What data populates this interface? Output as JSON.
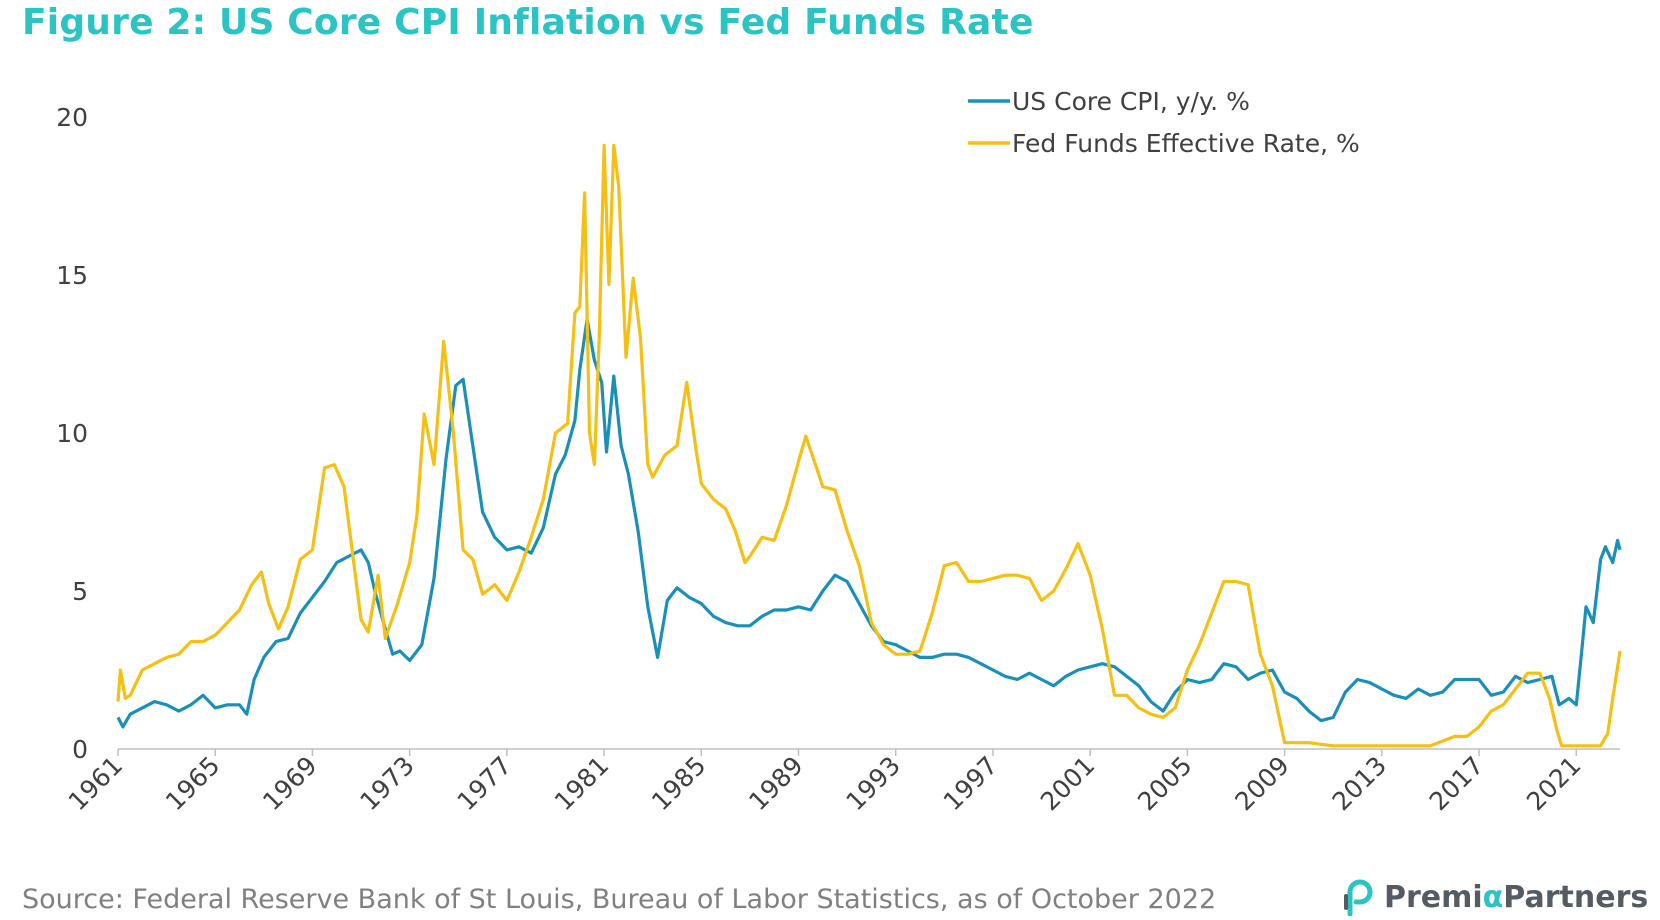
{
  "title": "Figure 2: US Core CPI Inflation vs Fed Funds Rate",
  "source": "Source: Federal Reserve Bank of St Louis, Bureau of Labor Statistics, as of October 2022",
  "logo": {
    "icon": "premia-p-logo-icon",
    "text_prefix": "Premi",
    "text_alpha": "α",
    "text_suffix": "Partners"
  },
  "colors": {
    "title": "#2cc3c3",
    "cpi": "#1a8fb8",
    "fed": "#f5bf14",
    "axis": "#bfbfbf",
    "text": "#404040"
  },
  "chart_data": {
    "type": "line",
    "title": "Figure 2: US Core CPI Inflation vs Fed Funds Rate",
    "xlabel": "",
    "ylabel": "",
    "xlim": [
      1961,
      2022.8
    ],
    "ylim": [
      0,
      20
    ],
    "y_ticks": [
      0,
      5,
      10,
      15,
      20
    ],
    "x_ticks": [
      1961,
      1965,
      1969,
      1973,
      1977,
      1981,
      1985,
      1989,
      1993,
      1997,
      2001,
      2005,
      2009,
      2013,
      2017,
      2021
    ],
    "grid": false,
    "legend_position": "top-right",
    "series": [
      {
        "name": "US Core CPI, y/y. %",
        "color": "#1a8fb8",
        "points": [
          [
            1961.0,
            1.0
          ],
          [
            1961.2,
            0.7
          ],
          [
            1961.5,
            1.1
          ],
          [
            1962.0,
            1.3
          ],
          [
            1962.5,
            1.5
          ],
          [
            1963.0,
            1.4
          ],
          [
            1963.5,
            1.2
          ],
          [
            1964.0,
            1.4
          ],
          [
            1964.5,
            1.7
          ],
          [
            1965.0,
            1.3
          ],
          [
            1965.5,
            1.4
          ],
          [
            1966.0,
            1.4
          ],
          [
            1966.3,
            1.1
          ],
          [
            1966.6,
            2.2
          ],
          [
            1967.0,
            2.9
          ],
          [
            1967.5,
            3.4
          ],
          [
            1968.0,
            3.5
          ],
          [
            1968.5,
            4.3
          ],
          [
            1969.0,
            4.8
          ],
          [
            1969.5,
            5.3
          ],
          [
            1970.0,
            5.9
          ],
          [
            1970.5,
            6.1
          ],
          [
            1971.0,
            6.3
          ],
          [
            1971.3,
            5.9
          ],
          [
            1971.6,
            4.9
          ],
          [
            1972.0,
            3.8
          ],
          [
            1972.3,
            3.0
          ],
          [
            1972.6,
            3.1
          ],
          [
            1973.0,
            2.8
          ],
          [
            1973.5,
            3.3
          ],
          [
            1974.0,
            5.4
          ],
          [
            1974.5,
            9.2
          ],
          [
            1974.9,
            11.5
          ],
          [
            1975.2,
            11.7
          ],
          [
            1975.6,
            9.6
          ],
          [
            1976.0,
            7.5
          ],
          [
            1976.5,
            6.7
          ],
          [
            1977.0,
            6.3
          ],
          [
            1977.5,
            6.4
          ],
          [
            1978.0,
            6.2
          ],
          [
            1978.5,
            7.0
          ],
          [
            1979.0,
            8.7
          ],
          [
            1979.4,
            9.3
          ],
          [
            1979.8,
            10.4
          ],
          [
            1980.0,
            12.0
          ],
          [
            1980.3,
            13.6
          ],
          [
            1980.6,
            12.3
          ],
          [
            1980.9,
            11.6
          ],
          [
            1981.1,
            9.4
          ],
          [
            1981.4,
            11.8
          ],
          [
            1981.7,
            9.6
          ],
          [
            1982.0,
            8.7
          ],
          [
            1982.4,
            6.9
          ],
          [
            1982.8,
            4.5
          ],
          [
            1983.2,
            2.9
          ],
          [
            1983.6,
            4.7
          ],
          [
            1984.0,
            5.1
          ],
          [
            1984.5,
            4.8
          ],
          [
            1985.0,
            4.6
          ],
          [
            1985.5,
            4.2
          ],
          [
            1986.0,
            4.0
          ],
          [
            1986.5,
            3.9
          ],
          [
            1987.0,
            3.9
          ],
          [
            1987.5,
            4.2
          ],
          [
            1988.0,
            4.4
          ],
          [
            1988.5,
            4.4
          ],
          [
            1989.0,
            4.5
          ],
          [
            1989.5,
            4.4
          ],
          [
            1990.0,
            5.0
          ],
          [
            1990.5,
            5.5
          ],
          [
            1991.0,
            5.3
          ],
          [
            1991.5,
            4.6
          ],
          [
            1992.0,
            3.9
          ],
          [
            1992.5,
            3.4
          ],
          [
            1993.0,
            3.3
          ],
          [
            1993.5,
            3.1
          ],
          [
            1994.0,
            2.9
          ],
          [
            1994.5,
            2.9
          ],
          [
            1995.0,
            3.0
          ],
          [
            1995.5,
            3.0
          ],
          [
            1996.0,
            2.9
          ],
          [
            1996.5,
            2.7
          ],
          [
            1997.0,
            2.5
          ],
          [
            1997.5,
            2.3
          ],
          [
            1998.0,
            2.2
          ],
          [
            1998.5,
            2.4
          ],
          [
            1999.0,
            2.2
          ],
          [
            1999.5,
            2.0
          ],
          [
            2000.0,
            2.3
          ],
          [
            2000.5,
            2.5
          ],
          [
            2001.0,
            2.6
          ],
          [
            2001.5,
            2.7
          ],
          [
            2002.0,
            2.6
          ],
          [
            2002.5,
            2.3
          ],
          [
            2003.0,
            2.0
          ],
          [
            2003.5,
            1.5
          ],
          [
            2004.0,
            1.2
          ],
          [
            2004.5,
            1.8
          ],
          [
            2005.0,
            2.2
          ],
          [
            2005.5,
            2.1
          ],
          [
            2006.0,
            2.2
          ],
          [
            2006.5,
            2.7
          ],
          [
            2007.0,
            2.6
          ],
          [
            2007.5,
            2.2
          ],
          [
            2008.0,
            2.4
          ],
          [
            2008.5,
            2.5
          ],
          [
            2009.0,
            1.8
          ],
          [
            2009.5,
            1.6
          ],
          [
            2010.0,
            1.2
          ],
          [
            2010.5,
            0.9
          ],
          [
            2011.0,
            1.0
          ],
          [
            2011.5,
            1.8
          ],
          [
            2012.0,
            2.2
          ],
          [
            2012.5,
            2.1
          ],
          [
            2013.0,
            1.9
          ],
          [
            2013.5,
            1.7
          ],
          [
            2014.0,
            1.6
          ],
          [
            2014.5,
            1.9
          ],
          [
            2015.0,
            1.7
          ],
          [
            2015.5,
            1.8
          ],
          [
            2016.0,
            2.2
          ],
          [
            2016.5,
            2.2
          ],
          [
            2017.0,
            2.2
          ],
          [
            2017.5,
            1.7
          ],
          [
            2018.0,
            1.8
          ],
          [
            2018.5,
            2.3
          ],
          [
            2019.0,
            2.1
          ],
          [
            2019.5,
            2.2
          ],
          [
            2020.0,
            2.3
          ],
          [
            2020.3,
            1.4
          ],
          [
            2020.7,
            1.6
          ],
          [
            2021.0,
            1.4
          ],
          [
            2021.2,
            2.9
          ],
          [
            2021.4,
            4.5
          ],
          [
            2021.7,
            4.0
          ],
          [
            2022.0,
            6.0
          ],
          [
            2022.2,
            6.4
          ],
          [
            2022.5,
            5.9
          ],
          [
            2022.7,
            6.6
          ],
          [
            2022.8,
            6.3
          ]
        ]
      },
      {
        "name": "Fed Funds Effective Rate, %",
        "color": "#f5bf14",
        "points": [
          [
            1961.0,
            1.5
          ],
          [
            1961.1,
            2.5
          ],
          [
            1961.3,
            1.6
          ],
          [
            1961.5,
            1.7
          ],
          [
            1962.0,
            2.5
          ],
          [
            1962.5,
            2.7
          ],
          [
            1963.0,
            2.9
          ],
          [
            1963.5,
            3.0
          ],
          [
            1964.0,
            3.4
          ],
          [
            1964.5,
            3.4
          ],
          [
            1965.0,
            3.6
          ],
          [
            1965.5,
            4.0
          ],
          [
            1966.0,
            4.4
          ],
          [
            1966.5,
            5.2
          ],
          [
            1966.9,
            5.6
          ],
          [
            1967.2,
            4.6
          ],
          [
            1967.6,
            3.8
          ],
          [
            1968.0,
            4.5
          ],
          [
            1968.5,
            6.0
          ],
          [
            1969.0,
            6.3
          ],
          [
            1969.5,
            8.9
          ],
          [
            1969.9,
            9.0
          ],
          [
            1970.3,
            8.3
          ],
          [
            1970.6,
            6.5
          ],
          [
            1971.0,
            4.1
          ],
          [
            1971.3,
            3.7
          ],
          [
            1971.7,
            5.5
          ],
          [
            1972.0,
            3.5
          ],
          [
            1972.5,
            4.6
          ],
          [
            1973.0,
            5.9
          ],
          [
            1973.3,
            7.4
          ],
          [
            1973.6,
            10.6
          ],
          [
            1974.0,
            9.0
          ],
          [
            1974.4,
            12.9
          ],
          [
            1974.8,
            10.0
          ],
          [
            1975.2,
            6.3
          ],
          [
            1975.6,
            6.0
          ],
          [
            1976.0,
            4.9
          ],
          [
            1976.5,
            5.2
          ],
          [
            1977.0,
            4.7
          ],
          [
            1977.5,
            5.6
          ],
          [
            1978.0,
            6.7
          ],
          [
            1978.5,
            7.9
          ],
          [
            1979.0,
            10.0
          ],
          [
            1979.5,
            10.3
          ],
          [
            1979.8,
            13.8
          ],
          [
            1980.0,
            14.0
          ],
          [
            1980.2,
            17.6
          ],
          [
            1980.4,
            10.0
          ],
          [
            1980.6,
            9.0
          ],
          [
            1980.8,
            13.0
          ],
          [
            1981.0,
            19.1
          ],
          [
            1981.2,
            14.7
          ],
          [
            1981.4,
            19.1
          ],
          [
            1981.6,
            17.8
          ],
          [
            1981.9,
            12.4
          ],
          [
            1982.2,
            14.9
          ],
          [
            1982.5,
            13.0
          ],
          [
            1982.8,
            9.0
          ],
          [
            1983.0,
            8.6
          ],
          [
            1983.5,
            9.3
          ],
          [
            1984.0,
            9.6
          ],
          [
            1984.4,
            11.6
          ],
          [
            1984.8,
            9.4
          ],
          [
            1985.0,
            8.4
          ],
          [
            1985.5,
            7.9
          ],
          [
            1986.0,
            7.6
          ],
          [
            1986.4,
            6.9
          ],
          [
            1986.8,
            5.9
          ],
          [
            1987.0,
            6.1
          ],
          [
            1987.5,
            6.7
          ],
          [
            1988.0,
            6.6
          ],
          [
            1988.5,
            7.7
          ],
          [
            1989.0,
            9.1
          ],
          [
            1989.3,
            9.9
          ],
          [
            1989.7,
            9.0
          ],
          [
            1990.0,
            8.3
          ],
          [
            1990.5,
            8.2
          ],
          [
            1991.0,
            6.9
          ],
          [
            1991.5,
            5.8
          ],
          [
            1992.0,
            4.0
          ],
          [
            1992.5,
            3.3
          ],
          [
            1993.0,
            3.0
          ],
          [
            1993.5,
            3.0
          ],
          [
            1994.0,
            3.1
          ],
          [
            1994.5,
            4.3
          ],
          [
            1995.0,
            5.8
          ],
          [
            1995.5,
            5.9
          ],
          [
            1996.0,
            5.3
          ],
          [
            1996.5,
            5.3
          ],
          [
            1997.0,
            5.4
          ],
          [
            1997.5,
            5.5
          ],
          [
            1998.0,
            5.5
          ],
          [
            1998.5,
            5.4
          ],
          [
            1999.0,
            4.7
          ],
          [
            1999.5,
            5.0
          ],
          [
            2000.0,
            5.7
          ],
          [
            2000.5,
            6.5
          ],
          [
            2001.0,
            5.5
          ],
          [
            2001.5,
            3.8
          ],
          [
            2002.0,
            1.7
          ],
          [
            2002.5,
            1.7
          ],
          [
            2003.0,
            1.3
          ],
          [
            2003.5,
            1.1
          ],
          [
            2004.0,
            1.0
          ],
          [
            2004.5,
            1.3
          ],
          [
            2005.0,
            2.5
          ],
          [
            2005.5,
            3.3
          ],
          [
            2006.0,
            4.3
          ],
          [
            2006.5,
            5.3
          ],
          [
            2007.0,
            5.3
          ],
          [
            2007.5,
            5.2
          ],
          [
            2008.0,
            3.0
          ],
          [
            2008.5,
            2.0
          ],
          [
            2009.0,
            0.2
          ],
          [
            2010.0,
            0.2
          ],
          [
            2011.0,
            0.1
          ],
          [
            2012.0,
            0.1
          ],
          [
            2013.0,
            0.1
          ],
          [
            2014.0,
            0.1
          ],
          [
            2015.0,
            0.1
          ],
          [
            2016.0,
            0.4
          ],
          [
            2016.5,
            0.4
          ],
          [
            2017.0,
            0.7
          ],
          [
            2017.5,
            1.2
          ],
          [
            2018.0,
            1.4
          ],
          [
            2018.5,
            1.9
          ],
          [
            2019.0,
            2.4
          ],
          [
            2019.5,
            2.4
          ],
          [
            2019.9,
            1.6
          ],
          [
            2020.2,
            0.6
          ],
          [
            2020.4,
            0.1
          ],
          [
            2021.0,
            0.1
          ],
          [
            2021.5,
            0.1
          ],
          [
            2022.0,
            0.1
          ],
          [
            2022.3,
            0.5
          ],
          [
            2022.5,
            1.6
          ],
          [
            2022.7,
            2.6
          ],
          [
            2022.8,
            3.1
          ]
        ]
      }
    ]
  }
}
